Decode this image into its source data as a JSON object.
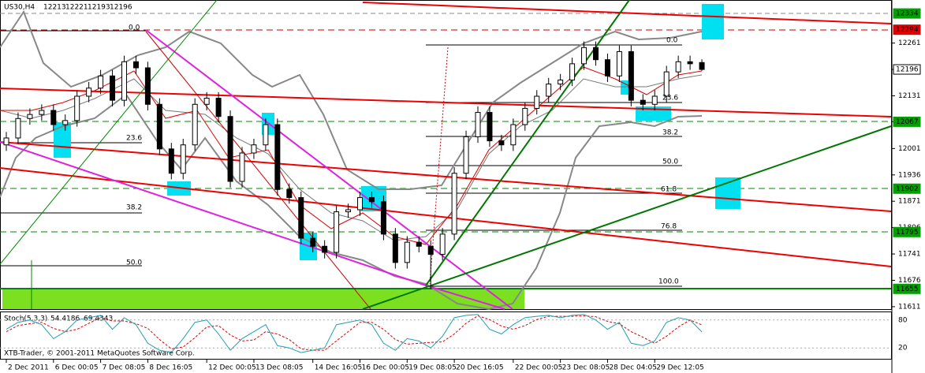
{
  "chart_data": {
    "type": "candlestick",
    "symbol": "US30,H4",
    "up_color": "#ffffff",
    "down_color": "#000000",
    "ylim": [
      11605,
      12340
    ],
    "yticks": [
      12261,
      12196,
      12131,
      12067,
      12001,
      11936,
      11871,
      11806,
      11741,
      11676,
      11611
    ],
    "open": [
      12010,
      12027,
      12075,
      12085,
      12095,
      12060,
      12070,
      12130,
      12150,
      12180,
      12120,
      12215,
      12200,
      12110,
      12000,
      11940,
      12010,
      12110,
      12125,
      12080,
      11920,
      11990,
      12010,
      12060,
      11900,
      11880,
      11780,
      11760,
      11745,
      11845,
      11850,
      11880,
      11870,
      11790,
      11720,
      11770,
      11760,
      11740,
      11790,
      11940,
      12030,
      12090,
      12020,
      12010,
      12060,
      12100,
      12130,
      12160,
      12170,
      12210,
      12250,
      12220,
      12180,
      12240,
      12120,
      12110,
      12130,
      12190,
      12215,
      12213
    ],
    "high": [
      12042,
      12090,
      12100,
      12110,
      12110,
      12085,
      12145,
      12165,
      12195,
      12195,
      12230,
      12230,
      12215,
      12125,
      12015,
      12025,
      12125,
      12140,
      12140,
      12095,
      12005,
      12025,
      12075,
      12075,
      11915,
      11895,
      11795,
      11775,
      11860,
      11865,
      11895,
      11895,
      11885,
      11805,
      11785,
      11785,
      11775,
      11805,
      11955,
      12045,
      12105,
      12105,
      12035,
      12075,
      12115,
      12145,
      12175,
      12185,
      12225,
      12265,
      12265,
      12235,
      12255,
      12255,
      12135,
      12145,
      12205,
      12230,
      12230,
      12221
    ],
    "low": [
      11995,
      12012,
      12060,
      12070,
      12045,
      12045,
      12055,
      12115,
      12135,
      12105,
      12105,
      12185,
      12095,
      11985,
      11925,
      11925,
      11995,
      12095,
      12065,
      11905,
      11905,
      11975,
      11995,
      11885,
      11865,
      11765,
      11745,
      11730,
      11730,
      11830,
      11835,
      11855,
      11775,
      11705,
      11705,
      11745,
      11655,
      11725,
      11775,
      11925,
      12015,
      12005,
      11995,
      11995,
      12045,
      12085,
      12115,
      12145,
      12155,
      12195,
      12205,
      12165,
      12165,
      12105,
      12095,
      12095,
      12115,
      12175,
      12195,
      12193
    ],
    "close": [
      12027,
      12075,
      12085,
      12095,
      12060,
      12070,
      12130,
      12150,
      12180,
      12120,
      12215,
      12200,
      12110,
      12000,
      11940,
      12010,
      12110,
      12125,
      12080,
      11920,
      11990,
      12010,
      12060,
      11900,
      11880,
      11780,
      11760,
      11745,
      11845,
      11850,
      11880,
      11870,
      11790,
      11720,
      11770,
      11760,
      11740,
      11790,
      11940,
      12030,
      12090,
      12020,
      12010,
      12060,
      12100,
      12130,
      12160,
      12170,
      12210,
      12250,
      12220,
      12180,
      12240,
      12120,
      12110,
      12130,
      12190,
      12215,
      12210,
      12196
    ],
    "xticks": [
      {
        "value": 0,
        "label": "2 Dec 2011"
      },
      {
        "value": 4,
        "label": "6 Dec 00:05"
      },
      {
        "value": 8,
        "label": "7 Dec 08:05"
      },
      {
        "value": 12,
        "label": "8 Dec 16:05"
      },
      {
        "value": 17,
        "label": "12 Dec 00:05"
      },
      {
        "value": 21,
        "label": "13 Dec 08:05"
      },
      {
        "value": 26,
        "label": "14 Dec 16:05"
      },
      {
        "value": 30,
        "label": "16 Dec 00:05"
      },
      {
        "value": 34,
        "label": "19 Dec 08:05"
      },
      {
        "value": 38,
        "label": "20 Dec 16:05"
      },
      {
        "value": 43,
        "label": "22 Dec 00:05"
      },
      {
        "value": 47,
        "label": "23 Dec 08:05"
      },
      {
        "value": 51,
        "label": "28 Dec 04:05"
      },
      {
        "value": 55,
        "label": "29 Dec 12:05"
      }
    ],
    "price_labels": [
      {
        "value": 12334,
        "color": "#00a000"
      },
      {
        "value": 12294,
        "color": "#e00000"
      },
      {
        "value": 12196,
        "color": "#000000"
      },
      {
        "value": 12067,
        "color": "#00a000"
      },
      {
        "value": 11902,
        "color": "#00a000"
      },
      {
        "value": 11795,
        "color": "#00a000"
      },
      {
        "value": 11655,
        "color": "#00a000"
      }
    ],
    "fib_left": [
      "0.0",
      "23.6",
      "38.2",
      "50.0"
    ],
    "fib_right": [
      "0.0",
      "23.6",
      "38.2",
      "50.0",
      "61.8",
      "76.8",
      "100.0"
    ],
    "stoch": {
      "name": "Stoch(5,3,3)",
      "ylim": [
        0,
        100
      ],
      "yticks": [
        80,
        20
      ],
      "main": {
        "color": "#20a0b0",
        "values": [
          60,
          75,
          80,
          70,
          40,
          55,
          80,
          85,
          90,
          60,
          85,
          70,
          30,
          15,
          10,
          40,
          75,
          80,
          50,
          15,
          40,
          55,
          70,
          25,
          20,
          10,
          15,
          20,
          70,
          75,
          80,
          70,
          30,
          15,
          40,
          35,
          20,
          45,
          85,
          90,
          92,
          60,
          50,
          70,
          85,
          88,
          90,
          85,
          90,
          92,
          80,
          60,
          75,
          30,
          25,
          35,
          75,
          85,
          80,
          54.4186
        ]
      },
      "signal": {
        "color": "#e00000",
        "values": [
          55,
          68,
          72,
          75,
          62,
          55,
          60,
          73,
          85,
          78,
          78,
          72,
          62,
          38,
          18,
          22,
          42,
          65,
          68,
          48,
          35,
          37,
          55,
          50,
          38,
          18,
          15,
          15,
          35,
          55,
          75,
          75,
          60,
          38,
          28,
          30,
          32,
          33,
          50,
          73,
          89,
          81,
          67,
          60,
          68,
          81,
          88,
          88,
          88,
          89,
          87,
          77,
          72,
          55,
          43,
          30,
          45,
          65,
          80,
          69.4343
        ]
      }
    },
    "copyright": "XTB-Trader, © 2001-2011 MetaQuotes Software Corp."
  }
}
